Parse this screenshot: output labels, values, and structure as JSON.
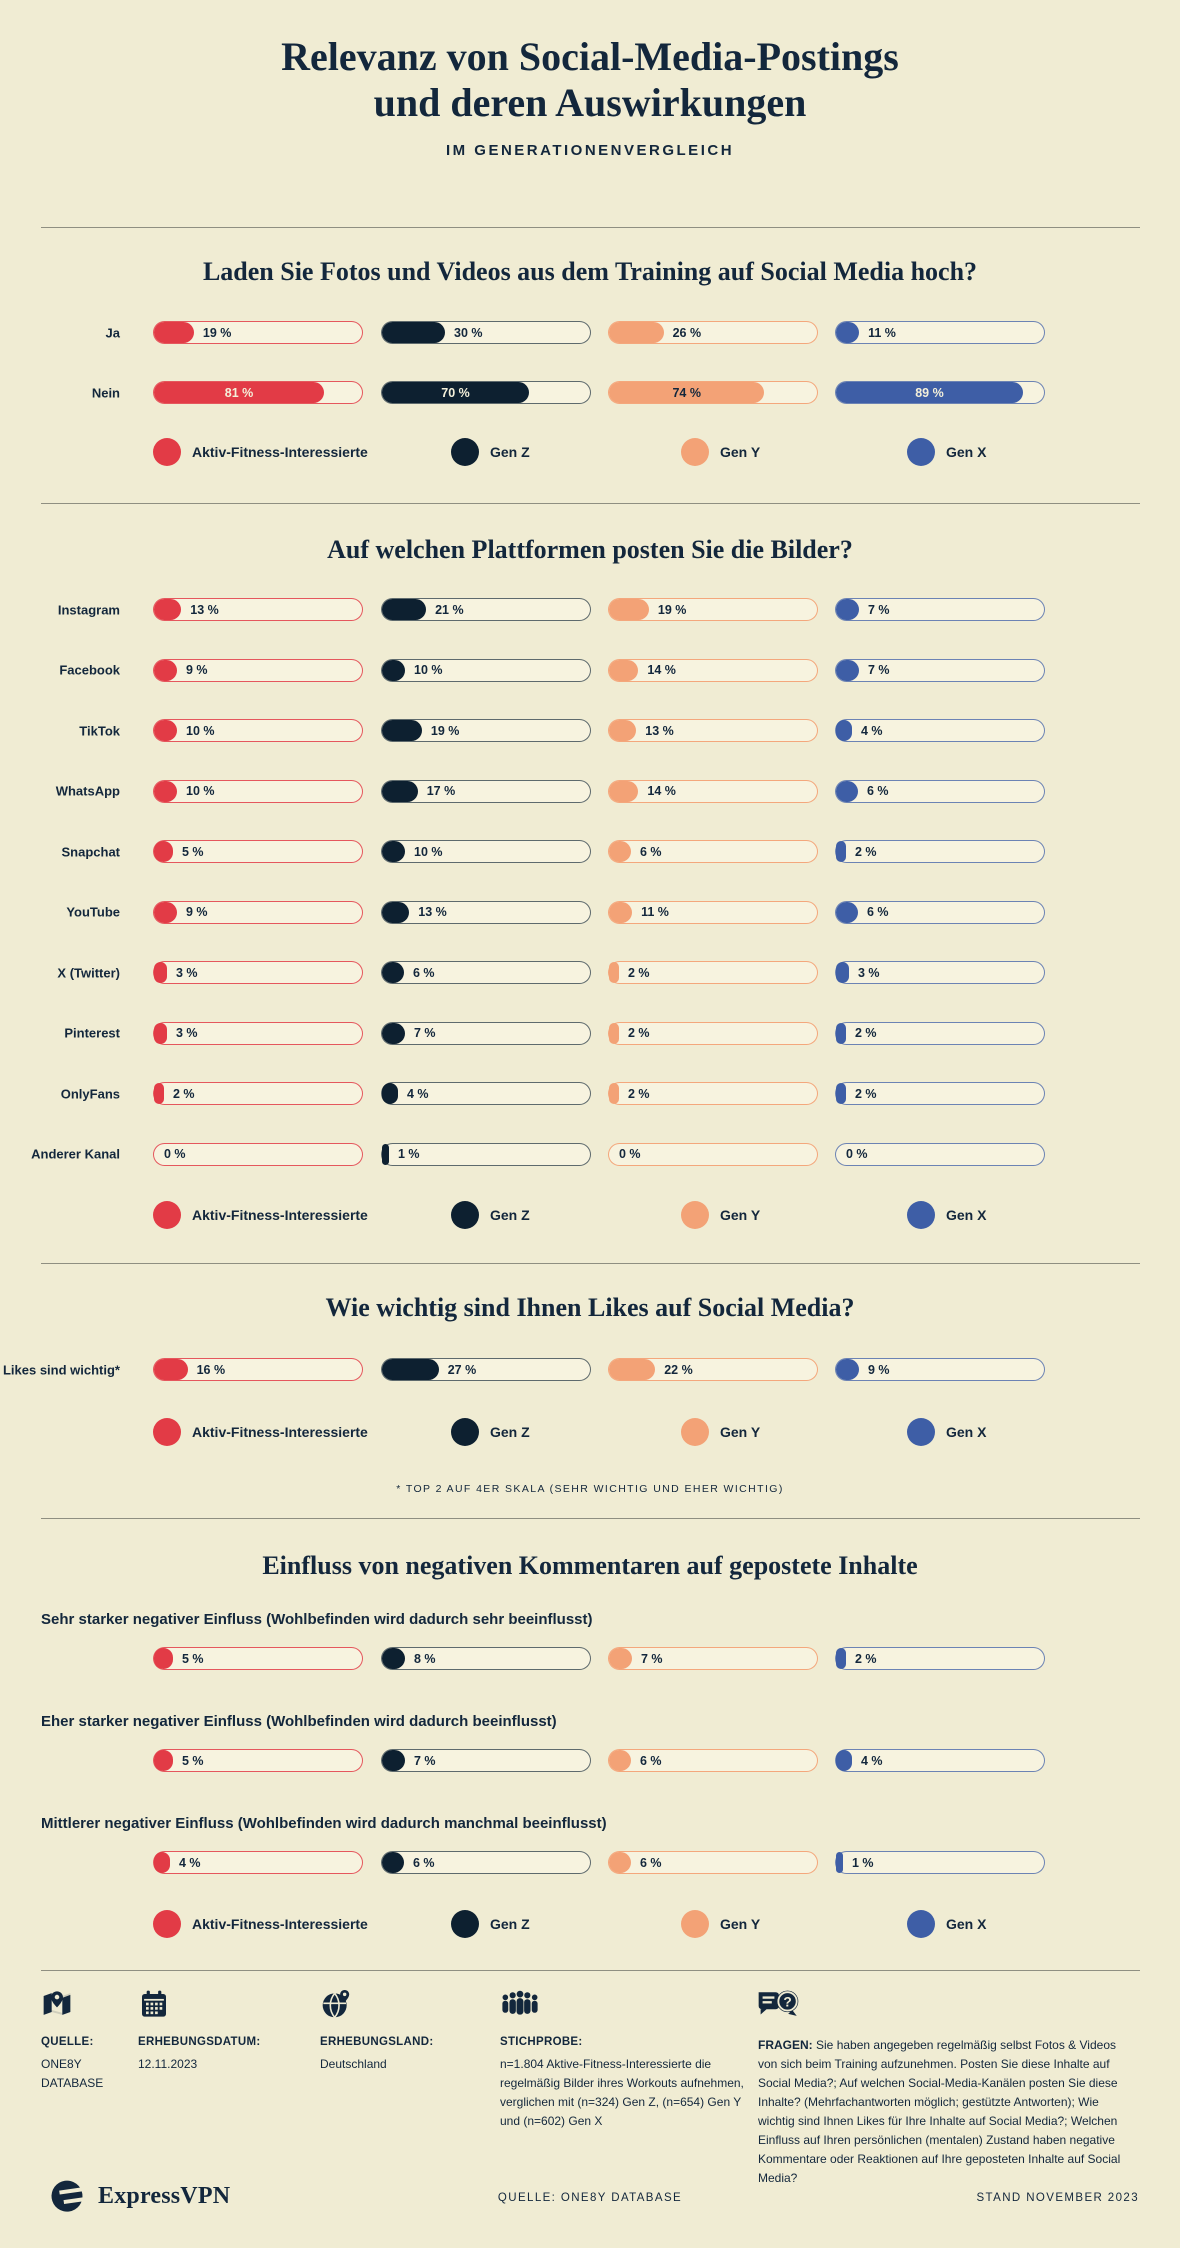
{
  "page": {
    "title_line1": "Relevanz von Social-Media-Postings",
    "title_line2": "und deren Auswirkungen",
    "subtitle": "IM GENERATIONENVERGLEICH"
  },
  "colors": {
    "background": "#f0ecd3",
    "ink": "#13273c",
    "red": "#e23b46",
    "navy": "#0d2030",
    "orange": "#f3a276",
    "blue": "#3e5ea6",
    "track": "#f7f3df",
    "divider": "#8f8f81",
    "cream": "#f4f0da"
  },
  "legend": [
    {
      "label": "Aktiv-Fitness-Interessierte",
      "color_key": "red"
    },
    {
      "label": "Gen Z",
      "color_key": "navy"
    },
    {
      "label": "Gen Y",
      "color_key": "orange"
    },
    {
      "label": "Gen X",
      "color_key": "blue"
    }
  ],
  "chart_data": [
    {
      "type": "bar",
      "title": "Laden Sie Fotos und Videos aus dem Training auf Social Media hoch?",
      "unit": "%",
      "xlim": [
        0,
        100
      ],
      "categories": [
        "Ja",
        "Nein"
      ],
      "series": [
        {
          "name": "Aktiv-Fitness-Interessierte",
          "values": [
            19,
            81
          ]
        },
        {
          "name": "Gen Z",
          "values": [
            30,
            70
          ]
        },
        {
          "name": "Gen Y",
          "values": [
            26,
            74
          ]
        },
        {
          "name": "Gen X",
          "values": [
            11,
            89
          ]
        }
      ]
    },
    {
      "type": "bar",
      "title": "Auf welchen Plattformen posten Sie die Bilder?",
      "unit": "%",
      "xlim": [
        0,
        100
      ],
      "categories": [
        "Instagram",
        "Facebook",
        "TikTok",
        "WhatsApp",
        "Snapchat",
        "YouTube",
        "X (Twitter)",
        "Pinterest",
        "OnlyFans",
        "Anderer Kanal"
      ],
      "series": [
        {
          "name": "Aktiv-Fitness-Interessierte",
          "values": [
            13,
            9,
            10,
            10,
            5,
            9,
            3,
            3,
            2,
            0
          ]
        },
        {
          "name": "Gen Z",
          "values": [
            21,
            10,
            19,
            17,
            10,
            13,
            6,
            7,
            4,
            1
          ]
        },
        {
          "name": "Gen Y",
          "values": [
            19,
            14,
            13,
            14,
            6,
            11,
            2,
            2,
            2,
            0
          ]
        },
        {
          "name": "Gen X",
          "values": [
            7,
            7,
            4,
            6,
            2,
            6,
            3,
            2,
            2,
            0
          ]
        }
      ]
    },
    {
      "type": "bar",
      "title": "Wie wichtig sind Ihnen Likes auf Social Media?",
      "unit": "%",
      "xlim": [
        0,
        100
      ],
      "categories": [
        "Likes sind wichtig*"
      ],
      "footnote": "* TOP 2 AUF 4ER SKALA (SEHR WICHTIG UND EHER WICHTIG)",
      "series": [
        {
          "name": "Aktiv-Fitness-Interessierte",
          "values": [
            16
          ]
        },
        {
          "name": "Gen Z",
          "values": [
            27
          ]
        },
        {
          "name": "Gen Y",
          "values": [
            22
          ]
        },
        {
          "name": "Gen X",
          "values": [
            9
          ]
        }
      ]
    },
    {
      "type": "bar",
      "title": "Einfluss von negativen Kommentaren auf gepostete Inhalte",
      "unit": "%",
      "xlim": [
        0,
        100
      ],
      "categories": [
        "Sehr starker negativer Einfluss (Wohlbefinden wird dadurch sehr beeinflusst)",
        "Eher starker negativer Einfluss (Wohlbefinden wird dadurch beeinflusst)",
        "Mittlerer negativer Einfluss (Wohlbefinden wird dadurch manchmal beeinflusst)"
      ],
      "series": [
        {
          "name": "Aktiv-Fitness-Interessierte",
          "values": [
            5,
            5,
            4
          ]
        },
        {
          "name": "Gen Z",
          "values": [
            8,
            7,
            6
          ]
        },
        {
          "name": "Gen Y",
          "values": [
            7,
            6,
            6
          ]
        },
        {
          "name": "Gen X",
          "values": [
            2,
            4,
            1
          ]
        }
      ]
    }
  ],
  "footer": {
    "items": [
      {
        "icon": "map-pin-icon",
        "label": "QUELLE:",
        "value": "ONE8Y DATABASE"
      },
      {
        "icon": "calendar-icon",
        "label": "ERHEBUNGSDATUM:",
        "value": "12.11.2023"
      },
      {
        "icon": "globe-pin-icon",
        "label": "ERHEBUNGSLAND:",
        "value": "Deutschland"
      },
      {
        "icon": "people-icon",
        "label": "STICHPROBE:",
        "value": "n=1.804 Aktive-Fitness-Interessierte die regelmäßig Bilder ihres Workouts auf­nehmen, verglichen mit (n=324) Gen Z, (n=654) Gen Y und (n=602) Gen X"
      },
      {
        "icon": "speech-question-icon",
        "label": "FRAGEN:",
        "value": "Sie haben angegeben regelmäßig selbst Fotos & Videos von sich beim Training aufzunehmen. Posten Sie diese Inhalte auf Social Media?; Auf welchen Social-Media-Kanälen posten Sie diese Inhalte? (Mehrfachantworten möglich; gestützte Antworten); Wie wichtig sind Ihnen Likes für Ihre Inhalte auf Social Media?; Welchen Einfluss auf Ihren persönlichen (mentalen) Zustand haben negative Kommentare oder Reaktionen auf Ihre geposteten Inhalte auf Social Media?"
      }
    ]
  },
  "bottom": {
    "brand": "ExpressVPN",
    "source": "QUELLE: ONE8Y DATABASE",
    "stand": "STAND NOVEMBER 2023"
  }
}
